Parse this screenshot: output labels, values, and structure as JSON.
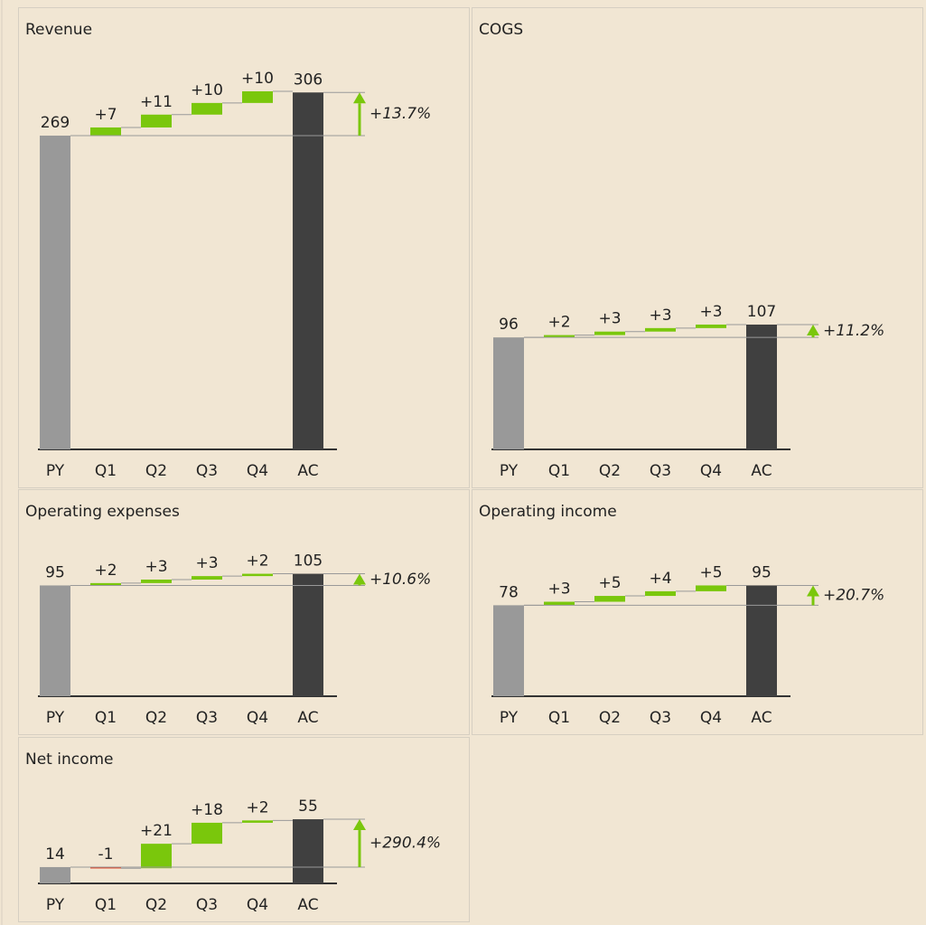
{
  "chart_data": [
    {
      "type": "waterfall",
      "title": "Revenue",
      "categories": [
        "PY",
        "Q1",
        "Q2",
        "Q3",
        "Q4",
        "AC"
      ],
      "values": [
        269,
        7,
        11,
        10,
        10,
        306
      ],
      "value_labels": [
        "269",
        "+7",
        "+11",
        "+10",
        "+10",
        "306"
      ],
      "delta_label": "+13.7%",
      "base_color": "#999999",
      "total_color": "#404040",
      "increase_color": "#7ac70c",
      "decrease_color": "#e03c1e"
    },
    {
      "type": "waterfall",
      "title": "COGS",
      "categories": [
        "PY",
        "Q1",
        "Q2",
        "Q3",
        "Q4",
        "AC"
      ],
      "values": [
        96,
        2,
        3,
        3,
        3,
        107
      ],
      "value_labels": [
        "96",
        "+2",
        "+3",
        "+3",
        "+3",
        "107"
      ],
      "delta_label": "+11.2%",
      "base_color": "#999999",
      "total_color": "#404040",
      "increase_color": "#7ac70c",
      "decrease_color": "#e03c1e"
    },
    {
      "type": "waterfall",
      "title": "Operating expenses",
      "categories": [
        "PY",
        "Q1",
        "Q2",
        "Q3",
        "Q4",
        "AC"
      ],
      "values": [
        95,
        2,
        3,
        3,
        2,
        105
      ],
      "value_labels": [
        "95",
        "+2",
        "+3",
        "+3",
        "+2",
        "105"
      ],
      "delta_label": "+10.6%",
      "base_color": "#999999",
      "total_color": "#404040",
      "increase_color": "#7ac70c",
      "decrease_color": "#e03c1e"
    },
    {
      "type": "waterfall",
      "title": "Operating income",
      "categories": [
        "PY",
        "Q1",
        "Q2",
        "Q3",
        "Q4",
        "AC"
      ],
      "values": [
        78,
        3,
        5,
        4,
        5,
        95
      ],
      "value_labels": [
        "78",
        "+3",
        "+5",
        "+4",
        "+5",
        "95"
      ],
      "delta_label": "+20.7%",
      "base_color": "#999999",
      "total_color": "#404040",
      "increase_color": "#7ac70c",
      "decrease_color": "#e03c1e"
    },
    {
      "type": "waterfall",
      "title": "Net income",
      "categories": [
        "PY",
        "Q1",
        "Q2",
        "Q3",
        "Q4",
        "AC"
      ],
      "values": [
        14,
        -1,
        21,
        18,
        2,
        55
      ],
      "value_labels": [
        "14",
        "-1",
        "+21",
        "+18",
        "+2",
        "55"
      ],
      "delta_label": "+290.4%",
      "base_color": "#999999",
      "total_color": "#404040",
      "increase_color": "#7ac70c",
      "decrease_color": "#e03c1e"
    }
  ]
}
